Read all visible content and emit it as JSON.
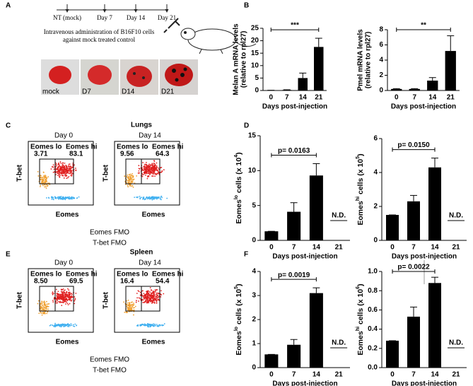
{
  "panels": [
    "A",
    "B",
    "C",
    "D",
    "E",
    "F"
  ],
  "timeline": {
    "labels": [
      "NT (mock)",
      "Day 7",
      "Day 14",
      "Day 21"
    ],
    "caption": [
      "Intravenous administration  of B16F10 cells",
      "against mock treated control"
    ]
  },
  "photos": {
    "labels": [
      "mock",
      "D7",
      "D14",
      "D21"
    ]
  },
  "flow": [
    {
      "title": "Lungs",
      "ylabel": "T-bet",
      "xlabel": "Eomes",
      "legend": [
        "Eomes FMO",
        "T-bet FMO"
      ],
      "plots": [
        {
          "day": "Day 0",
          "gates": [
            {
              "label": "Eomes lo",
              "value": "3.71"
            },
            {
              "label": "Eomes hi",
              "value": "83.1"
            }
          ]
        },
        {
          "day": "Day 14",
          "gates": [
            {
              "label": "Eomes lo",
              "value": "9.56"
            },
            {
              "label": "Eomes hi",
              "value": "64.3"
            }
          ]
        }
      ]
    },
    {
      "title": "Spleen",
      "ylabel": "T-bet",
      "xlabel": "Eomes",
      "legend": [
        "Eomes FMO",
        "T-bet FMO"
      ],
      "plots": [
        {
          "day": "Day 0",
          "gates": [
            {
              "label": "Eomes lo",
              "value": "8.50"
            },
            {
              "label": "Eomes hi",
              "value": "69.5"
            }
          ]
        },
        {
          "day": "Day 14",
          "gates": [
            {
              "label": "Eomes lo",
              "value": "16.4"
            },
            {
              "label": "Eomes hi",
              "value": "54.4"
            }
          ]
        }
      ]
    }
  ],
  "chart_data": [
    {
      "type": "bar",
      "categories": [
        "0",
        "7",
        "14",
        "21"
      ],
      "values": [
        0.1,
        0.2,
        5,
        17.5
      ],
      "errors": [
        0,
        0.1,
        2,
        3.5
      ],
      "color": "#000000",
      "ylim": [
        0,
        25
      ],
      "yticks": [
        0,
        5,
        10,
        15,
        20,
        25
      ],
      "xlabel": "Days post-injection",
      "ylabel_lines": [
        "Melan A mRNA levels",
        "(relative to rpl27)"
      ],
      "annotation": "***"
    },
    {
      "type": "bar",
      "categories": [
        "0",
        "7",
        "14",
        "21"
      ],
      "values": [
        0.2,
        0.2,
        1.3,
        5.2
      ],
      "errors": [
        0.05,
        0.05,
        0.4,
        2
      ],
      "color": "#000000",
      "ylim": [
        0,
        8
      ],
      "yticks": [
        0,
        2,
        4,
        6,
        8
      ],
      "xlabel": "Days post-injection",
      "ylabel_lines": [
        "Pmel mRNA levels",
        "(relative to rpl27)"
      ],
      "annotation": "**"
    },
    {
      "type": "bar",
      "categories": [
        "0",
        "7",
        "14",
        "21"
      ],
      "values": [
        1.3,
        4.1,
        9.3,
        null
      ],
      "value_labels": [
        null,
        null,
        null,
        "N.D."
      ],
      "errors": [
        0,
        1.3,
        1.7,
        null
      ],
      "color": "#000000",
      "ylim": [
        0,
        15
      ],
      "yticks": [
        0,
        5,
        10,
        15
      ],
      "xlabel": "Days post-injection",
      "ylabel_parts": [
        "Eomes",
        "lo",
        " cells (x 10",
        "4",
        ")"
      ],
      "annotation": "p= 0.0163"
    },
    {
      "type": "bar",
      "categories": [
        "0",
        "7",
        "14",
        "21"
      ],
      "values": [
        1.5,
        2.3,
        4.3,
        null
      ],
      "value_labels": [
        null,
        null,
        null,
        "N.D."
      ],
      "errors": [
        0,
        0.35,
        0.55,
        null
      ],
      "color": "#000000",
      "ylim": [
        0,
        6
      ],
      "yticks": [
        0,
        2,
        4,
        6
      ],
      "xlabel": "Days post-injection",
      "ylabel_parts": [
        "Eomes",
        "hi",
        " cells (x 10",
        "5",
        ")"
      ],
      "annotation": "p= 0.0150"
    },
    {
      "type": "bar",
      "categories": [
        "0",
        "7",
        "14",
        "21"
      ],
      "values": [
        0.55,
        0.95,
        3.1,
        null
      ],
      "value_labels": [
        null,
        null,
        null,
        "N.D."
      ],
      "errors": [
        0,
        0.22,
        0.22,
        null
      ],
      "color": "#000000",
      "ylim": [
        0,
        4
      ],
      "yticks": [
        0,
        1,
        2,
        3,
        4
      ],
      "xlabel": "Days post-injection",
      "ylabel_parts": [
        "Eomes",
        "lo",
        " cells (x 10",
        "5",
        ")"
      ],
      "annotation": "p= 0.0019"
    },
    {
      "type": "bar",
      "categories": [
        "0",
        "7",
        "14",
        "21"
      ],
      "values": [
        0.28,
        0.53,
        0.88,
        null
      ],
      "value_labels": [
        null,
        null,
        null,
        "N.D."
      ],
      "errors": [
        0,
        0.1,
        0.06,
        null
      ],
      "color": "#000000",
      "ylim": [
        0,
        1
      ],
      "yticks": [
        {
          "value": 0,
          "label": "0.0"
        },
        {
          "value": 0.2,
          "label": "0.2"
        },
        {
          "value": 0.4,
          "label": "0.4"
        },
        {
          "value": 0.6,
          "label": "0.6"
        },
        {
          "value": 0.8,
          "label": "0.8"
        },
        {
          "value": 1,
          "label": "1.0"
        }
      ],
      "xlabel": "Days post-injection",
      "ylabel_parts": [
        "Eomes",
        "hi",
        " cells (x 10",
        "6",
        ")"
      ],
      "annotation": "p= 0.0022"
    }
  ]
}
